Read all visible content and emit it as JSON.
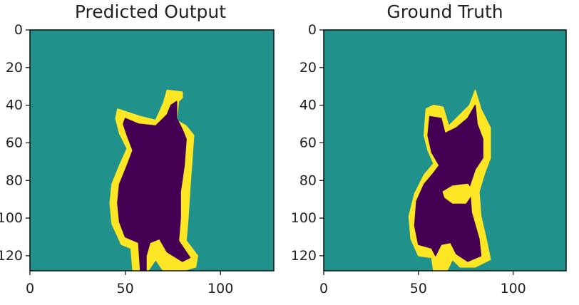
{
  "chart_data": [
    {
      "type": "heatmap",
      "title": "Predicted Output",
      "xlabel": "",
      "ylabel": "",
      "x_ticks": [
        0,
        50,
        100
      ],
      "y_ticks": [
        0,
        20,
        40,
        60,
        80,
        100,
        120
      ],
      "x_tick_labels": [
        "0",
        "50",
        "100"
      ],
      "y_tick_labels": [
        "0",
        "20",
        "40",
        "60",
        "80",
        "100",
        "120"
      ],
      "xlim": [
        0,
        128
      ],
      "ylim": [
        128,
        0
      ],
      "colormap": "viridis",
      "classes": [
        {
          "label": "background",
          "value": 1,
          "color": "#21918c"
        },
        {
          "label": "object",
          "value": 0,
          "color": "#440154"
        },
        {
          "label": "boundary",
          "value": 2,
          "color": "#fde725"
        }
      ],
      "regions": [
        {
          "class": "boundary",
          "outline": [
            [
              46,
              42
            ],
            [
              58,
              46
            ],
            [
              66,
              48
            ],
            [
              70,
              39
            ],
            [
              72,
              32
            ],
            [
              80,
              33
            ],
            [
              80,
              36
            ],
            [
              78,
              38
            ],
            [
              77,
              48
            ],
            [
              82,
              51
            ],
            [
              86,
              56
            ],
            [
              85,
              70
            ],
            [
              84,
              84
            ],
            [
              83,
              100
            ],
            [
              82,
              112
            ],
            [
              88,
              120
            ],
            [
              87,
              126
            ],
            [
              80,
              128
            ],
            [
              70,
              128
            ],
            [
              66,
              122
            ],
            [
              62,
              128
            ],
            [
              54,
              128
            ],
            [
              53,
              116
            ],
            [
              48,
              114
            ],
            [
              43,
              103
            ],
            [
              42,
              92
            ],
            [
              43,
              82
            ],
            [
              47,
              72
            ],
            [
              51,
              63
            ],
            [
              47,
              55
            ],
            [
              45,
              47
            ]
          ]
        },
        {
          "class": "object",
          "outline": [
            [
              50,
              47
            ],
            [
              57,
              50
            ],
            [
              66,
              51
            ],
            [
              72,
              45
            ],
            [
              74,
              40
            ],
            [
              77,
              38
            ],
            [
              77,
              47
            ],
            [
              80,
              53
            ],
            [
              82,
              58
            ],
            [
              81,
              72
            ],
            [
              79,
              86
            ],
            [
              79,
              100
            ],
            [
              78,
              112
            ],
            [
              84,
              121
            ],
            [
              80,
              123
            ],
            [
              72,
              118
            ],
            [
              68,
              111
            ],
            [
              63,
              113
            ],
            [
              61,
              120
            ],
            [
              61,
              128
            ],
            [
              58,
              128
            ],
            [
              57,
              113
            ],
            [
              50,
              110
            ],
            [
              47,
              102
            ],
            [
              46,
              92
            ],
            [
              47,
              82
            ],
            [
              51,
              72
            ],
            [
              54,
              64
            ],
            [
              51,
              56
            ],
            [
              49,
              50
            ]
          ]
        }
      ]
    },
    {
      "type": "heatmap",
      "title": "Ground Truth",
      "xlabel": "",
      "ylabel": "",
      "x_ticks": [
        0,
        50,
        100
      ],
      "y_ticks": [
        0,
        20,
        40,
        60,
        80,
        100,
        120
      ],
      "x_tick_labels": [
        "0",
        "50",
        "100"
      ],
      "y_tick_labels": [
        "0",
        "20",
        "40",
        "60",
        "80",
        "100",
        "120"
      ],
      "xlim": [
        0,
        128
      ],
      "ylim": [
        128,
        0
      ],
      "colormap": "viridis",
      "classes": [
        {
          "label": "background",
          "value": 1,
          "color": "#21918c"
        },
        {
          "label": "object",
          "value": 0,
          "color": "#440154"
        },
        {
          "label": "boundary",
          "value": 2,
          "color": "#fde725"
        }
      ],
      "regions": [
        {
          "class": "boundary",
          "outline": [
            [
              54,
              42
            ],
            [
              58,
              40
            ],
            [
              63,
              41
            ],
            [
              66,
              51
            ],
            [
              71,
              46
            ],
            [
              77,
              40
            ],
            [
              80,
              32
            ],
            [
              83,
              42
            ],
            [
              88,
              52
            ],
            [
              88,
              68
            ],
            [
              85,
              76
            ],
            [
              82,
              86
            ],
            [
              83,
              99
            ],
            [
              86,
              112
            ],
            [
              88,
              122
            ],
            [
              80,
              126
            ],
            [
              72,
              126
            ],
            [
              68,
              122
            ],
            [
              65,
              128
            ],
            [
              58,
              128
            ],
            [
              57,
              121
            ],
            [
              50,
              120
            ],
            [
              46,
              111
            ],
            [
              45,
              99
            ],
            [
              48,
              87
            ],
            [
              53,
              77
            ],
            [
              58,
              71
            ],
            [
              55,
              64
            ],
            [
              53,
              56
            ]
          ]
        },
        {
          "class": "object",
          "outline": [
            [
              56,
              46
            ],
            [
              62,
              47
            ],
            [
              64,
              55
            ],
            [
              70,
              52
            ],
            [
              76,
              47
            ],
            [
              80,
              40
            ],
            [
              81,
              50
            ],
            [
              84,
              58
            ],
            [
              84,
              68
            ],
            [
              80,
              74
            ],
            [
              77,
              83
            ],
            [
              78,
              97
            ],
            [
              82,
              111
            ],
            [
              83,
              120
            ],
            [
              76,
              123
            ],
            [
              70,
              119
            ],
            [
              67,
              113
            ],
            [
              62,
              114
            ],
            [
              59,
              120
            ],
            [
              57,
              116
            ],
            [
              50,
              114
            ],
            [
              48,
              104
            ],
            [
              49,
              91
            ],
            [
              53,
              82
            ],
            [
              58,
              76
            ],
            [
              61,
              72
            ],
            [
              57,
              65
            ],
            [
              55,
              56
            ]
          ]
        },
        {
          "class": "boundary",
          "outline": [
            [
              63,
              86
            ],
            [
              68,
              83
            ],
            [
              76,
              82
            ],
            [
              79,
              86
            ],
            [
              75,
              92
            ],
            [
              68,
              92
            ],
            [
              64,
              89
            ]
          ]
        }
      ]
    }
  ]
}
